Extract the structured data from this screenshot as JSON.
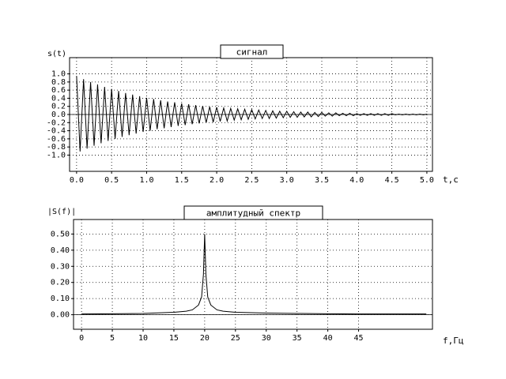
{
  "chart_data": [
    {
      "type": "line",
      "title": "сигнал",
      "ylabel": "s(t)",
      "xlabel": "t,c",
      "grid": true,
      "color": "#000000",
      "xlim": [
        -0.1,
        5.08
      ],
      "ylim": [
        -1.4,
        1.4
      ],
      "xticks": [
        {
          "value": 0,
          "label": "0.0"
        },
        0.5,
        {
          "value": 1,
          "label": "1.0"
        },
        1.5,
        {
          "value": 2,
          "label": "2.0"
        },
        2.5,
        {
          "value": 3,
          "label": "3.0"
        },
        3.5,
        {
          "value": 4,
          "label": "4.0"
        },
        4.5,
        {
          "value": 5,
          "label": "5.0"
        }
      ],
      "yticks": [
        {
          "value": 1,
          "label": "1.0"
        },
        0.8,
        0.6,
        0.4,
        0.2,
        {
          "value": 0,
          "label": "0.0"
        },
        -0.2,
        -0.4,
        -0.6,
        -0.8,
        {
          "value": -1,
          "label": "-1.0"
        }
      ],
      "x": [
        0,
        0.05,
        0.1,
        0.15,
        0.2,
        0.25,
        0.3,
        0.35,
        0.4,
        0.45,
        0.5,
        0.55,
        0.6,
        0.65,
        0.7,
        0.75,
        0.8,
        0.85,
        0.9,
        0.95,
        1,
        1.05,
        1.1,
        1.15,
        1.2,
        1.25,
        1.3,
        1.35,
        1.4,
        1.45,
        1.5,
        1.55,
        1.6,
        1.65,
        1.7,
        1.75,
        1.8,
        1.85,
        1.9,
        1.95,
        2,
        2.05,
        2.1,
        2.15,
        2.2,
        2.25,
        2.3,
        2.35,
        2.4,
        2.45,
        2.5,
        2.55,
        2.6,
        2.65,
        2.7,
        2.75,
        2.8,
        2.85,
        2.9,
        2.95,
        3,
        3.05,
        3.1,
        3.15,
        3.2,
        3.25,
        3.3,
        3.35,
        3.4,
        3.45,
        3.5,
        3.55,
        3.6,
        3.65,
        3.7,
        3.75,
        3.8,
        3.85,
        3.9,
        3.95,
        4,
        4.05,
        4.1,
        4.15,
        4.2,
        4.25,
        4.3,
        4.35,
        4.4,
        4.45,
        4.5,
        4.55,
        4.6,
        4.65,
        4.7,
        4.75,
        4.8,
        4.85,
        4.9,
        4.95,
        5
      ],
      "values": [
        0.95,
        -0.91,
        0.87,
        -0.84,
        0.8,
        -0.77,
        0.74,
        -0.71,
        0.68,
        -0.65,
        0.63,
        -0.6,
        0.58,
        -0.55,
        0.53,
        -0.51,
        0.49,
        -0.47,
        0.45,
        -0.43,
        0.41,
        -0.4,
        0.38,
        -0.36,
        0.35,
        -0.34,
        0.32,
        -0.31,
        0.3,
        -0.28,
        0.27,
        -0.26,
        0.25,
        -0.24,
        0.23,
        -0.22,
        0.21,
        -0.2,
        0.19,
        -0.19,
        0.18,
        -0.17,
        0.16,
        -0.16,
        0.15,
        -0.14,
        0.14,
        -0.13,
        0.13,
        -0.12,
        0.12,
        -0.11,
        0.11,
        -0.1,
        0.1,
        -0.1,
        0.09,
        -0.09,
        0.08,
        -0.08,
        0.08,
        -0.07,
        0.07,
        -0.07,
        0.06,
        -0.06,
        0.06,
        -0.06,
        0.05,
        -0.05,
        0.05,
        -0.04,
        0.04,
        -0.04,
        0.04,
        -0.03,
        0.03,
        -0.03,
        0.03,
        -0.03,
        0.02,
        -0.02,
        0.02,
        -0.02,
        0.02,
        -0.02,
        0.02,
        -0.02,
        0.02,
        -0.02,
        0.02,
        -0.01,
        0.01,
        -0.01,
        0.01,
        -0.01,
        0.01,
        -0.01,
        0.01,
        -0.01,
        0.01
      ]
    },
    {
      "type": "line",
      "title": "амплитудный спектр",
      "ylabel": "|S(f)|",
      "xlabel": "f,Гц",
      "grid": true,
      "color": "#000000",
      "xlim": [
        -1.3,
        57
      ],
      "ylim": [
        -0.09,
        0.59
      ],
      "xticks": [
        0,
        5,
        10,
        15,
        20,
        25,
        30,
        35,
        40,
        45
      ],
      "yticks": [
        {
          "value": 0.5,
          "label": "0.50"
        },
        {
          "value": 0.4,
          "label": "0.40"
        },
        {
          "value": 0.3,
          "label": "0.30"
        },
        {
          "value": 0.2,
          "label": "0.20"
        },
        {
          "value": 0.1,
          "label": "0.10"
        },
        {
          "value": 0,
          "label": "0.00"
        }
      ],
      "x": [
        0,
        5,
        10,
        15,
        17,
        18,
        19,
        19.5,
        19.8,
        20,
        20.2,
        20.5,
        21,
        22,
        23,
        25,
        30,
        35,
        40,
        45,
        50,
        56
      ],
      "values": [
        0.005,
        0.006,
        0.008,
        0.015,
        0.022,
        0.03,
        0.06,
        0.11,
        0.25,
        0.5,
        0.25,
        0.11,
        0.06,
        0.03,
        0.022,
        0.015,
        0.01,
        0.008,
        0.006,
        0.005,
        0.005,
        0.005
      ]
    }
  ]
}
